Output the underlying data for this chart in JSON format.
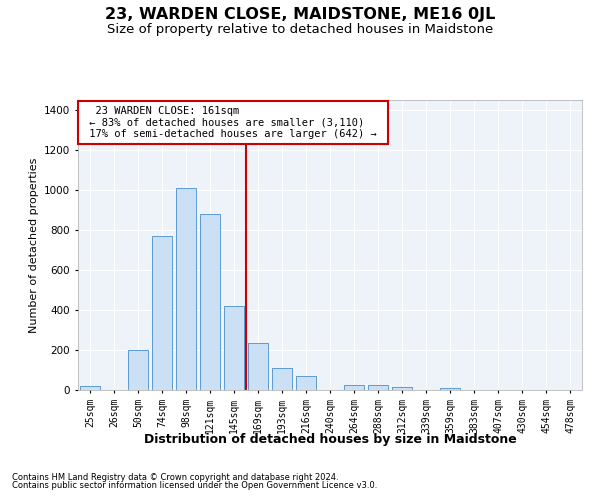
{
  "title": "23, WARDEN CLOSE, MAIDSTONE, ME16 0JL",
  "subtitle": "Size of property relative to detached houses in Maidstone",
  "xlabel": "Distribution of detached houses by size in Maidstone",
  "ylabel": "Number of detached properties",
  "footer_line1": "Contains HM Land Registry data © Crown copyright and database right 2024.",
  "footer_line2": "Contains public sector information licensed under the Open Government Licence v3.0.",
  "categories": [
    "25sqm",
    "26sqm",
    "50sqm",
    "74sqm",
    "98sqm",
    "121sqm",
    "145sqm",
    "169sqm",
    "193sqm",
    "216sqm",
    "240sqm",
    "264sqm",
    "288sqm",
    "312sqm",
    "339sqm",
    "359sqm",
    "383sqm",
    "407sqm",
    "430sqm",
    "454sqm",
    "478sqm"
  ],
  "values": [
    20,
    0,
    200,
    770,
    1010,
    880,
    420,
    235,
    110,
    70,
    0,
    25,
    25,
    15,
    0,
    10,
    0,
    0,
    0,
    0,
    0
  ],
  "bar_color": "#cce0f5",
  "bar_edge_color": "#5b9bd5",
  "property_line_label": "23 WARDEN CLOSE: 161sqm",
  "annotation_line1": "← 83% of detached houses are smaller (3,110)",
  "annotation_line2": "17% of semi-detached houses are larger (642) →",
  "ylim": [
    0,
    1450
  ],
  "yticks": [
    0,
    200,
    400,
    600,
    800,
    1000,
    1200,
    1400
  ],
  "bg_color": "#eef3fa",
  "grid_color": "#ffffff",
  "annotation_box_color": "#ffffff",
  "annotation_box_edge": "#cc0000",
  "vline_color": "#cc0000",
  "vline_pos": 6.5,
  "title_fontsize": 11.5,
  "subtitle_fontsize": 9.5,
  "xlabel_fontsize": 9,
  "ylabel_fontsize": 8,
  "tick_fontsize": 7,
  "annotation_fontsize": 7.5,
  "footer_fontsize": 6
}
